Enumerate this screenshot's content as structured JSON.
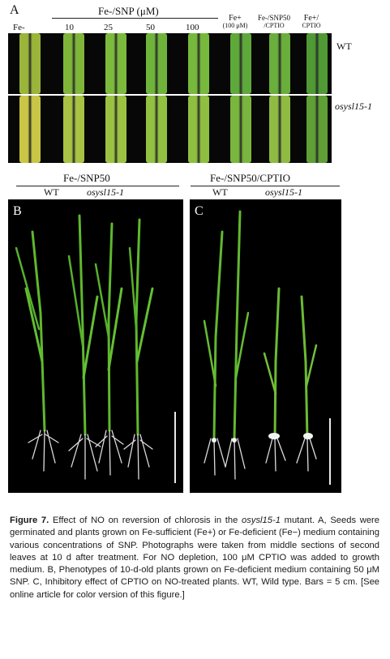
{
  "panel_a": {
    "letter": "A",
    "group_title": "Fe-/SNP (μM)",
    "columns": [
      "Fe-",
      "10",
      "25",
      "50",
      "100"
    ],
    "extra_columns": [
      {
        "line1": "Fe+",
        "line2": "(100 μM)"
      },
      {
        "line1": "Fe-/SNP50",
        "line2": "/CPTIO"
      },
      {
        "line1": "Fe+/",
        "line2": "CPTIO"
      }
    ],
    "row_labels": [
      "WT",
      "osysl15-1"
    ],
    "leaf_colors_wt": [
      "#9ab53a",
      "#7fb63a",
      "#7cba3c",
      "#6fb43a",
      "#76b93c",
      "#5ea93a",
      "#6aae3c",
      "#4f9a34"
    ],
    "leaf_colors_mut": [
      "#c9c646",
      "#a8c244",
      "#9cc242",
      "#92c040",
      "#8ebf40",
      "#7ab63d",
      "#8fbb43",
      "#5f9f36"
    ]
  },
  "panel_b": {
    "letter": "B",
    "title": "Fe-/SNP50",
    "sub_labels": [
      "WT",
      "osysl15-1"
    ]
  },
  "panel_c": {
    "letter": "C",
    "title": "Fe-/SNP50/CPTIO",
    "sub_labels": [
      "WT",
      "osysl15-1"
    ]
  },
  "caption": {
    "figure_label": "Figure 7",
    "title_text": "Effect of NO on reversion of chlorosis in the ",
    "title_gene": "osysl15-1",
    "title_end": " mutant.",
    "text_a": "A, Seeds were germinated and plants grown on Fe-sufficient (Fe+) or Fe-deficient (Fe−) medium containing various concentrations of SNP. Photographs were taken from middle sections of second leaves at 10 d after treatment. For NO depletion, 100 μM CPTIO was added to growth medium.",
    "text_b": "B, Phenotypes of 10-d-old plants grown on Fe-deficient medium containing 50 μM SNP.",
    "text_c": "C, Inhibitory effect of CPTIO on NO-treated plants. WT, Wild type. Bars = 5 cm. [See online article for color version of this figure.]"
  }
}
